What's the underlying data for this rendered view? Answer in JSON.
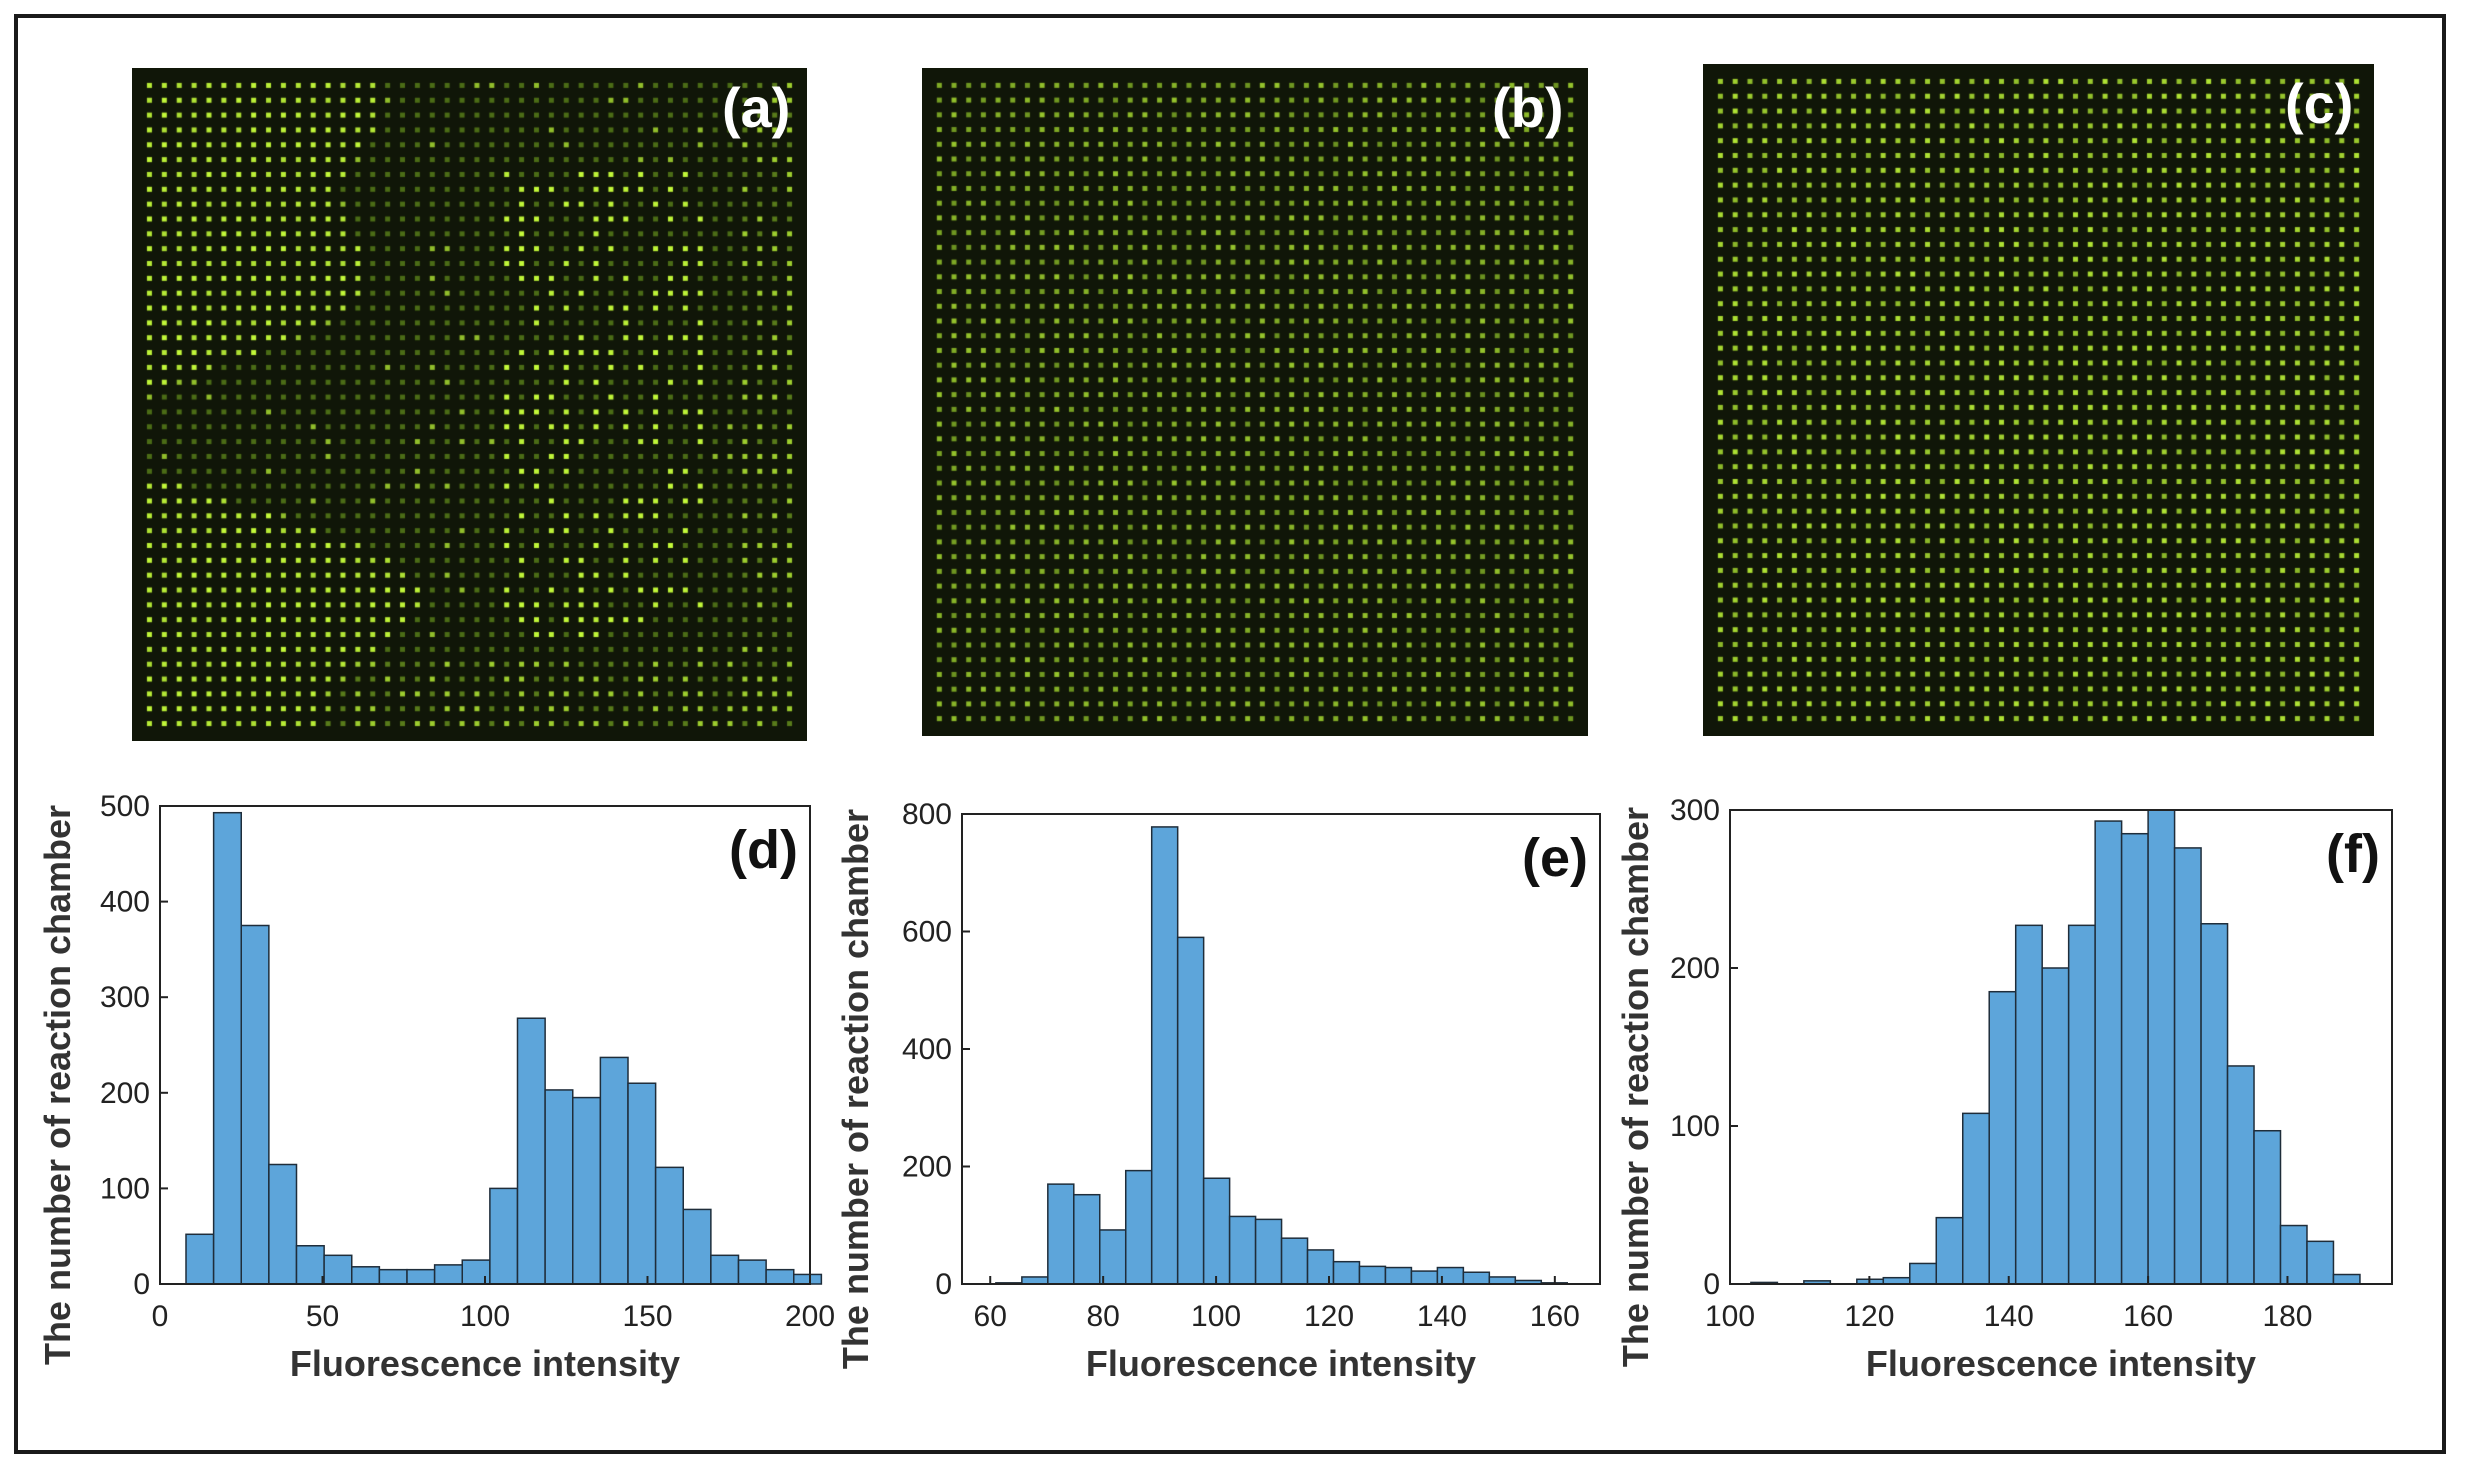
{
  "panels": {
    "a": {
      "label": "(a)"
    },
    "b": {
      "label": "(b)"
    },
    "c": {
      "label": "(c)"
    }
  },
  "colors": {
    "bar_fill": "#5DA5DA",
    "bar_edge": "#1f2d3a",
    "dot": "#b8e04a",
    "micro_bg": "#101608"
  },
  "chart_data": [
    {
      "type": "bar",
      "panel_label": "(d)",
      "xlabel": "Fluorescence intensity",
      "ylabel": "The number of reaction chamber",
      "xlim": [
        0,
        200
      ],
      "ylim": [
        0,
        500
      ],
      "xticks": [
        0,
        50,
        100,
        150,
        200
      ],
      "yticks": [
        0,
        100,
        200,
        300,
        400,
        500
      ],
      "bin_width": 8.5,
      "bin_start": 8,
      "values": [
        52,
        493,
        375,
        125,
        40,
        30,
        18,
        15,
        15,
        20,
        25,
        100,
        278,
        203,
        195,
        237,
        210,
        122,
        78,
        30,
        25,
        15,
        10
      ]
    },
    {
      "type": "bar",
      "panel_label": "(e)",
      "xlabel": "Fluorescence intensity",
      "ylabel": "The number of reaction chamber",
      "xlim": [
        55,
        168
      ],
      "ylim": [
        0,
        800
      ],
      "xticks": [
        60,
        80,
        100,
        120,
        140,
        160
      ],
      "yticks": [
        0,
        200,
        400,
        600,
        800
      ],
      "bin_width": 4.6,
      "bin_start": 61,
      "values": [
        2,
        12,
        170,
        152,
        92,
        193,
        778,
        590,
        180,
        115,
        110,
        78,
        58,
        38,
        30,
        28,
        22,
        28,
        20,
        12,
        6,
        2
      ]
    },
    {
      "type": "bar",
      "panel_label": "(f)",
      "xlabel": "Fluorescence intensity",
      "ylabel": "The number of reaction chamber",
      "xlim": [
        100,
        195
      ],
      "ylim": [
        0,
        300
      ],
      "xticks": [
        100,
        120,
        140,
        160,
        180
      ],
      "yticks": [
        0,
        100,
        200,
        300
      ],
      "bin_width": 3.8,
      "bin_start": 103,
      "values": [
        1,
        0,
        2,
        0,
        3,
        4,
        13,
        42,
        108,
        185,
        227,
        200,
        227,
        293,
        285,
        303,
        276,
        228,
        138,
        97,
        37,
        27,
        6
      ]
    }
  ]
}
